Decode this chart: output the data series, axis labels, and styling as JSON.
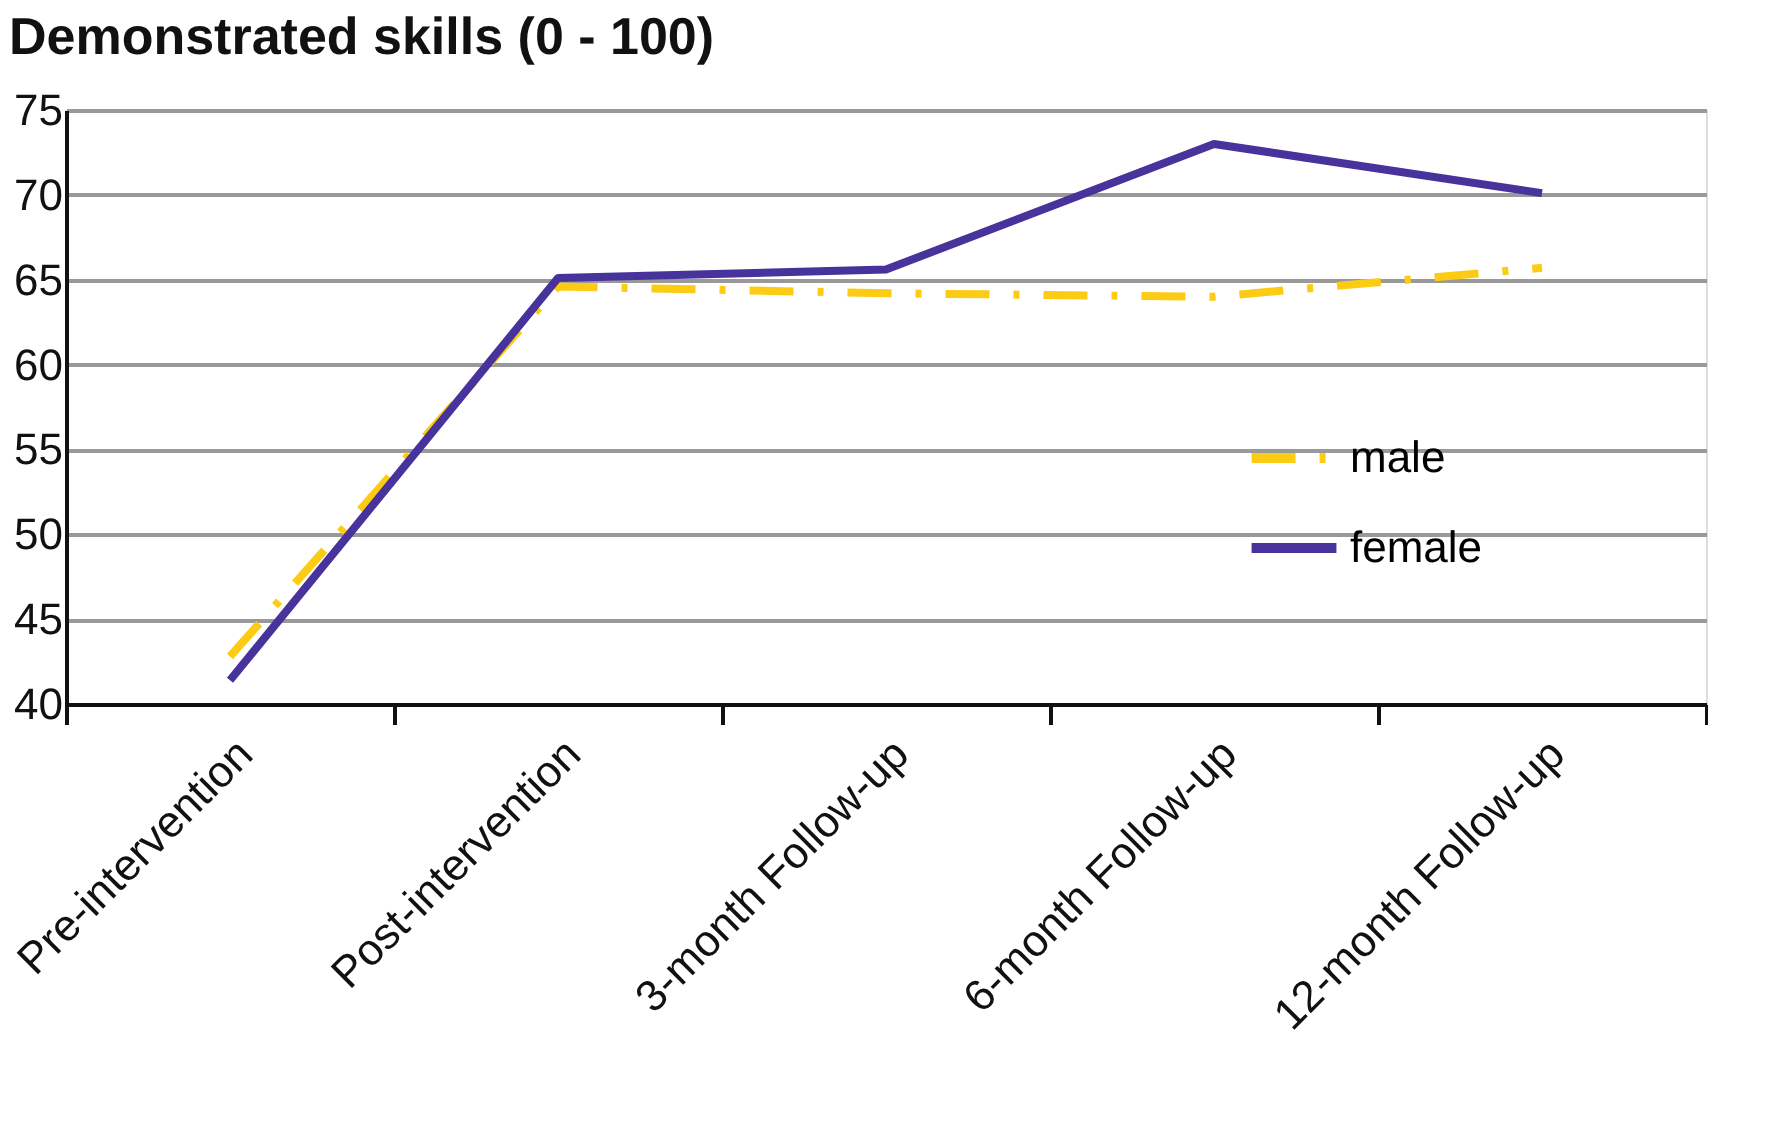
{
  "chart_data": {
    "type": "line",
    "title": "Demonstrated skills (0 - 100)",
    "categories": [
      "Pre-intervention",
      "Post-intervention",
      "3-month Follow-up",
      "6-month Follow-up",
      "12-month Follow-up"
    ],
    "series": [
      {
        "name": "male",
        "color": "#fccc14",
        "line_style": "dashed",
        "values": [
          42.8,
          64.6,
          64.2,
          64.0,
          65.7
        ]
      },
      {
        "name": "female",
        "color": "#47339b",
        "line_style": "solid",
        "values": [
          41.4,
          65.1,
          65.6,
          73.0,
          70.1
        ]
      }
    ],
    "ylim": [
      40,
      75
    ],
    "yticks": [
      40,
      45,
      50,
      55,
      60,
      65,
      70,
      75
    ],
    "grid": "y",
    "legend": "right",
    "marker": "none"
  }
}
